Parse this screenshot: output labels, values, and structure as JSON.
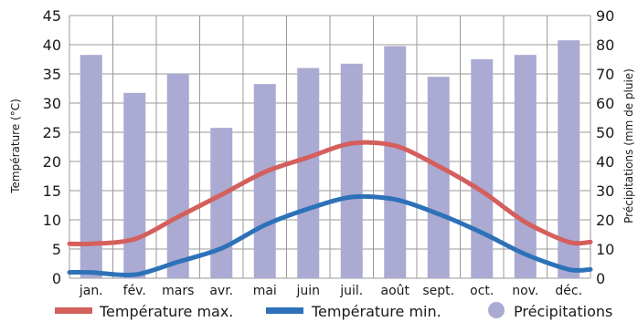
{
  "chart_data": {
    "type": "bar",
    "categories": [
      "jan.",
      "fév.",
      "mars",
      "avr.",
      "mai",
      "juin",
      "juil.",
      "août",
      "sept.",
      "oct.",
      "nov.",
      "déc."
    ],
    "series": [
      {
        "name": "Température max.",
        "type": "line",
        "axis": "left",
        "color": "#d45f5c",
        "values": [
          5.9,
          6.7,
          10.5,
          14.3,
          18.2,
          20.7,
          23.1,
          22.7,
          19.2,
          14.9,
          9.6,
          6.2
        ]
      },
      {
        "name": "Température min.",
        "type": "line",
        "axis": "left",
        "color": "#2d72b8",
        "values": [
          1.0,
          0.6,
          2.8,
          5.1,
          9.1,
          11.9,
          13.9,
          13.5,
          11.0,
          7.8,
          4.1,
          1.5
        ]
      },
      {
        "name": "Précipitations",
        "type": "bar",
        "axis": "right",
        "color": "#aaaad2",
        "values": [
          76.5,
          63.5,
          70.0,
          51.5,
          66.5,
          72.0,
          73.5,
          79.5,
          69.0,
          75.0,
          76.5,
          81.5
        ]
      }
    ],
    "ylabel": "Température (°C)",
    "ylabel_right": "Précipitations (mm de pluie)",
    "ylim": [
      0,
      45
    ],
    "ylim_right": [
      0,
      90
    ],
    "yticks": [
      "0",
      "5",
      "10",
      "15",
      "20",
      "25",
      "30",
      "35",
      "40",
      "45"
    ],
    "yticks_right": [
      "0",
      "10",
      "20",
      "30",
      "40",
      "50",
      "60",
      "70",
      "80",
      "90"
    ],
    "grid": true,
    "legend_position": "bottom"
  },
  "legend": {
    "tmax": "Température max.",
    "tmin": "Température min.",
    "precip": "Précipitations"
  },
  "axes": {
    "left_title": "Température (°C)",
    "right_title": "Précipitations (mm de pluie)"
  }
}
